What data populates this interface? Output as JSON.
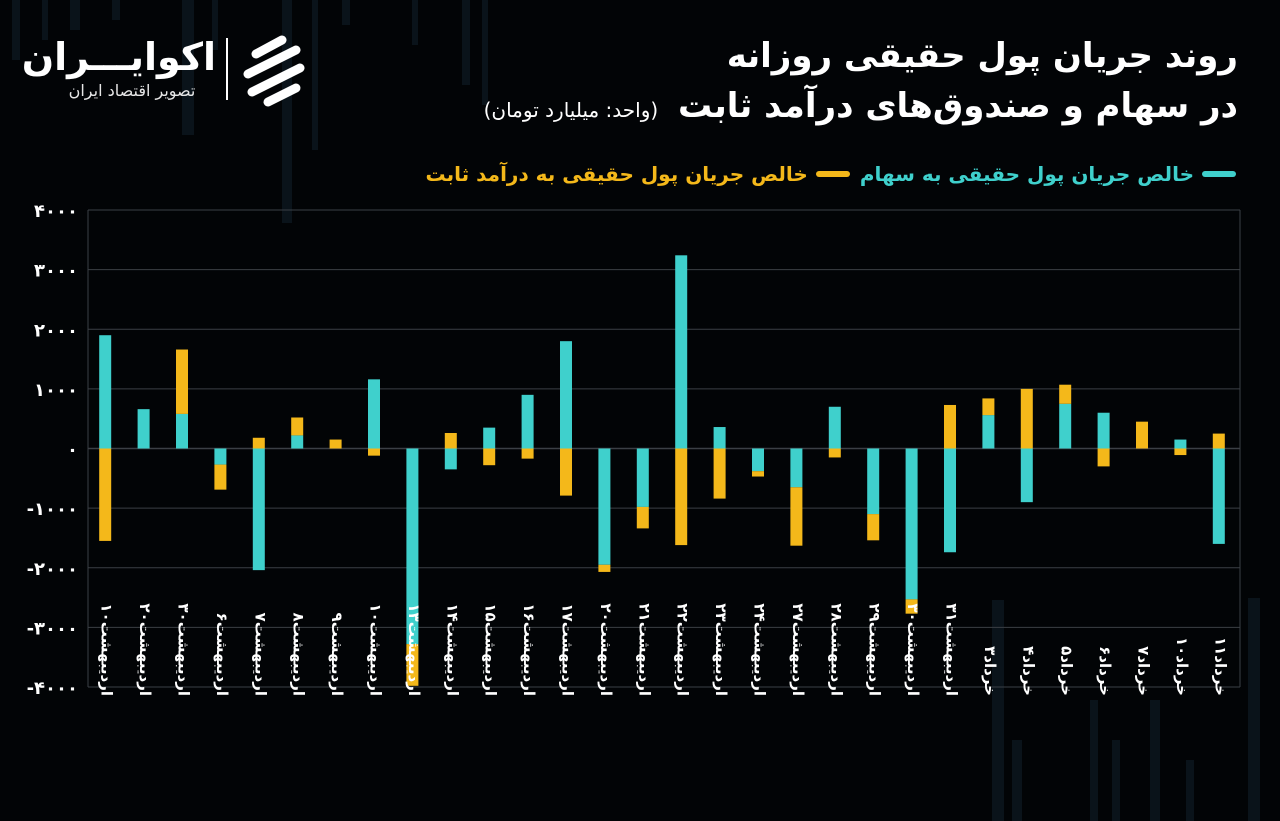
{
  "header": {
    "title_line1": "روند جریان پول حقیقی روزانه",
    "title_line2": "در سهام و صندوق‌های درآمد ثابت",
    "unit": "(واحد: میلیارد تومان)"
  },
  "logo": {
    "name": "اکوایـــران",
    "subtitle": "تصویر اقتصاد ایران"
  },
  "legend": {
    "stocks": "خالص جریان پول حقیقی به سهام",
    "fixed_income": "خالص جریان پول حقیقی به درآمد ثابت"
  },
  "colors": {
    "stocks": "#3fd0cc",
    "fixed_income": "#f4b81a",
    "background": "#020406",
    "grid": "#3b3f45"
  },
  "chart_data": {
    "type": "bar",
    "stacked": true,
    "categories": [
      "اردیبهشت۱۰",
      "اردیبهشت۲۰",
      "اردیبهشت۳۰",
      "اردیبهشت۶",
      "اردیبهشت۷",
      "اردیبهشت۸",
      "اردیبهشت۹",
      "اردیبهشت۱۰",
      "اردیبهشت۱۳",
      "اردیبهشت۱۴",
      "اردیبهشت۱۵",
      "اردیبهشت۱۶",
      "اردیبهشت۱۷",
      "اردیبهشت۲۰",
      "اردیبهشت۲۱",
      "اردیبهشت۲۲",
      "اردیبهشت۲۳",
      "اردیبهشت۲۴",
      "اردیبهشت۲۷",
      "اردیبهشت۲۸",
      "اردیبهشت۲۹",
      "اردیبهشت۳۰",
      "اردیبهشت۳۱",
      "خرداد۳",
      "خرداد۴",
      "خرداد۵",
      "خرداد۶",
      "خرداد۷",
      "خرداد۱۰",
      "خرداد۱۱"
    ],
    "series": [
      {
        "name": "خالص جریان پول حقیقی به سهام",
        "values": [
          1900,
          660,
          580,
          -270,
          -2040,
          220,
          0,
          1160,
          -3280,
          -350,
          350,
          900,
          1800,
          -1950,
          -980,
          3240,
          360,
          -380,
          -650,
          700,
          -1100,
          -2530,
          -1740,
          560,
          -900,
          750,
          600,
          0,
          150,
          -1600
        ]
      },
      {
        "name": "خالص جریان پول حقیقی به درآمد ثابت",
        "values": [
          -1550,
          0,
          1080,
          -420,
          180,
          300,
          150,
          -120,
          -700,
          260,
          -280,
          -170,
          -790,
          -120,
          -360,
          -1620,
          -840,
          -90,
          -980,
          -150,
          -440,
          -240,
          730,
          280,
          1000,
          320,
          -300,
          450,
          -110,
          250
        ]
      }
    ],
    "y_ticks": [
      "۴۰۰۰",
      "۳۰۰۰",
      "۲۰۰۰",
      "۱۰۰۰",
      "۰",
      "-۱۰۰۰",
      "-۲۰۰۰",
      "-۳۰۰۰",
      "-۴۰۰۰"
    ],
    "ylim": [
      -4000,
      4000
    ],
    "grid": true,
    "legend_position": "top-right"
  }
}
